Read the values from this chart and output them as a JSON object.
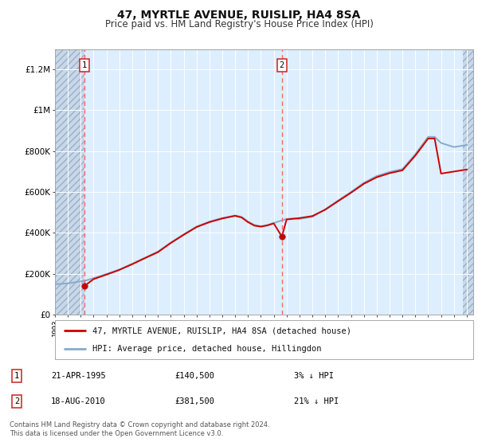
{
  "title": "47, MYRTLE AVENUE, RUISLIP, HA4 8SA",
  "subtitle": "Price paid vs. HM Land Registry's House Price Index (HPI)",
  "background_color": "#ffffff",
  "plot_bg_color": "#ddeeff",
  "hatch_bg": "#c8d8e8",
  "sale1_date": 1995.31,
  "sale1_price": 140500,
  "sale2_date": 2010.63,
  "sale2_price": 381500,
  "legend_line1": "47, MYRTLE AVENUE, RUISLIP, HA4 8SA (detached house)",
  "legend_line2": "HPI: Average price, detached house, Hillingdon",
  "footer": "Contains HM Land Registry data © Crown copyright and database right 2024.\nThis data is licensed under the Open Government Licence v3.0.",
  "xlim": [
    1993,
    2025.5
  ],
  "ylim": [
    0,
    1300000
  ],
  "yticks": [
    0,
    200000,
    400000,
    600000,
    800000,
    1000000,
    1200000
  ],
  "ytick_labels": [
    "£0",
    "£200K",
    "£400K",
    "£600K",
    "£800K",
    "£1M",
    "£1.2M"
  ],
  "xticks": [
    1993,
    1994,
    1995,
    1996,
    1997,
    1998,
    1999,
    2000,
    2001,
    2002,
    2003,
    2004,
    2005,
    2006,
    2007,
    2008,
    2009,
    2010,
    2011,
    2012,
    2013,
    2014,
    2015,
    2016,
    2017,
    2018,
    2019,
    2020,
    2021,
    2022,
    2023,
    2024,
    2025
  ],
  "red_line_color": "#cc0000",
  "blue_line_color": "#88aacc",
  "sale_marker_color": "#cc0000",
  "dashed_line_color": "#ff6666",
  "hpi_data_x": [
    1993,
    1994,
    1994.5,
    1995,
    1995.5,
    1996,
    1997,
    1998,
    1999,
    2000,
    2001,
    2002,
    2003,
    2004,
    2005,
    2006,
    2007,
    2007.5,
    2008,
    2008.5,
    2009,
    2009.5,
    2010,
    2010.5,
    2011,
    2011.5,
    2012,
    2013,
    2014,
    2015,
    2016,
    2017,
    2018,
    2019,
    2020,
    2021,
    2022,
    2022.5,
    2023,
    2024,
    2025
  ],
  "hpi_data_y": [
    148000,
    152000,
    157000,
    162000,
    168000,
    178000,
    198000,
    220000,
    248000,
    278000,
    308000,
    352000,
    392000,
    430000,
    455000,
    472000,
    485000,
    478000,
    455000,
    438000,
    432000,
    438000,
    448000,
    458000,
    468000,
    470000,
    468000,
    478000,
    515000,
    558000,
    600000,
    645000,
    678000,
    698000,
    712000,
    785000,
    870000,
    870000,
    840000,
    820000,
    830000
  ],
  "price_data_x": [
    1995.31,
    1996,
    1997,
    1998,
    1999,
    2000,
    2001,
    2002,
    2003,
    2004,
    2005,
    2006,
    2007,
    2007.5,
    2008,
    2008.5,
    2009,
    2009.5,
    2010,
    2010.63,
    2011,
    2012,
    2013,
    2014,
    2015,
    2016,
    2017,
    2018,
    2019,
    2020,
    2021,
    2022,
    2022.5,
    2023,
    2024,
    2025
  ],
  "price_data_y": [
    140500,
    173000,
    195000,
    218000,
    246000,
    276000,
    305000,
    350000,
    390000,
    428000,
    452000,
    470000,
    483000,
    475000,
    452000,
    435000,
    430000,
    436000,
    446000,
    381500,
    465000,
    472000,
    482000,
    513000,
    555000,
    596000,
    640000,
    672000,
    692000,
    706000,
    778000,
    862000,
    862000,
    690000,
    700000,
    710000
  ]
}
